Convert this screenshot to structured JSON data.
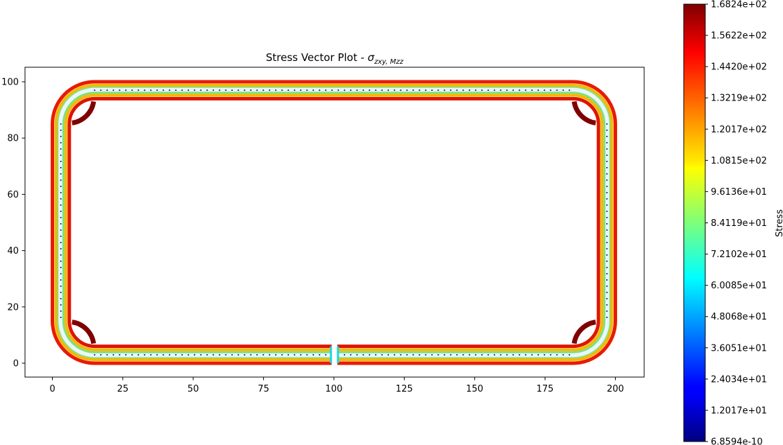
{
  "chart_data": {
    "type": "vector-field",
    "title": "Stress Vector Plot - ",
    "title_symbol": "σ",
    "title_subscript": "zxy, Mzz",
    "xlim": [
      -10,
      210
    ],
    "ylim": [
      -5,
      105
    ],
    "xticks": [
      0,
      25,
      50,
      75,
      100,
      125,
      150,
      175,
      200
    ],
    "yticks": [
      0,
      20,
      40,
      60,
      80,
      100
    ],
    "section": {
      "description": "closed rounded-rectangle thin wall with slit at bottom",
      "x_min": 0,
      "x_max": 200,
      "y_min": 0,
      "y_max": 100,
      "wall_thickness": 6,
      "outer_corner_radius": 15,
      "slit_x": [
        99.2,
        101.2
      ]
    },
    "colorbar": {
      "label": "Stress",
      "colormap": "jet",
      "min": 6.8594e-10,
      "max": 168.24,
      "tick_labels": [
        "6.8594e-10",
        "1.2017e+01",
        "2.4034e+01",
        "3.6051e+01",
        "4.8068e+01",
        "6.0085e+01",
        "7.2102e+01",
        "8.4119e+01",
        "9.6136e+01",
        "1.0815e+02",
        "1.2017e+02",
        "1.3219e+02",
        "1.4420e+02",
        "1.5622e+02",
        "1.6824e+02"
      ]
    }
  }
}
